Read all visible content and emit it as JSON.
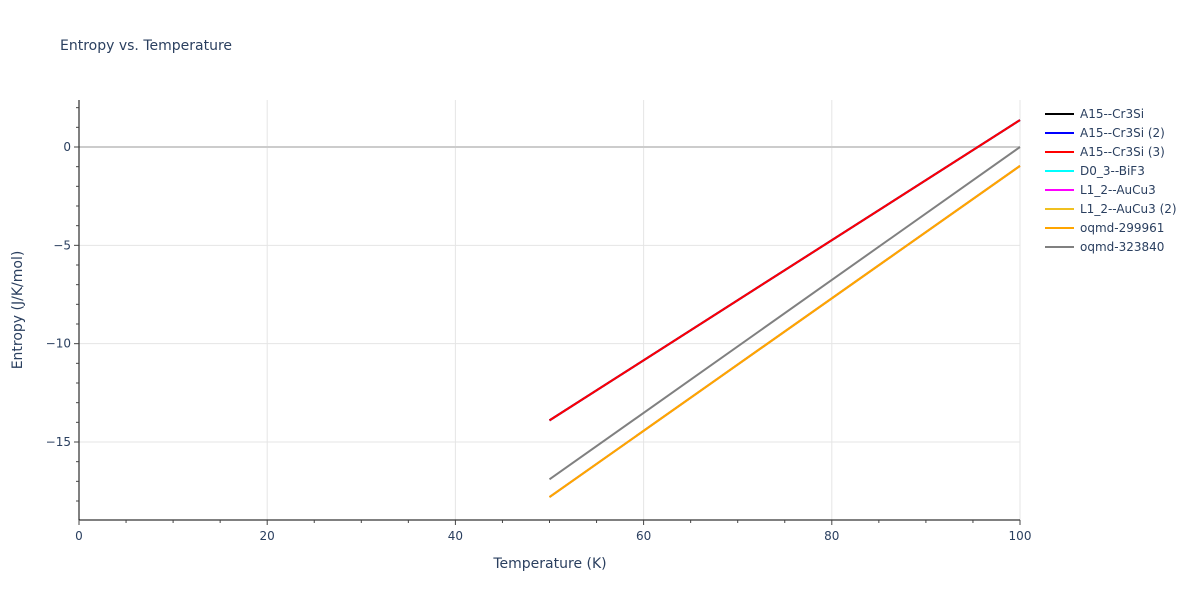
{
  "chart_data": {
    "type": "line",
    "title": "Entropy vs. Temperature",
    "xlabel": "Temperature (K)",
    "ylabel": "Entropy (J/K/mol)",
    "xlim": [
      0,
      100
    ],
    "ylim": [
      -18.9,
      2.4
    ],
    "xticks": [
      0,
      20,
      40,
      60,
      80,
      100
    ],
    "yticks": [
      0,
      -5,
      -10,
      -15
    ],
    "xtick_labels": [
      "0",
      "20",
      "40",
      "60",
      "80",
      "100"
    ],
    "ytick_labels": [
      "0",
      "−5",
      "−10",
      "−15"
    ],
    "grid": true,
    "legend_position": "right",
    "series": [
      {
        "name": "A15--Cr3Si",
        "color": "#000000",
        "x": [
          50,
          100
        ],
        "y": [
          -13.9,
          1.37
        ],
        "visible_in_plot": false
      },
      {
        "name": "A15--Cr3Si (2)",
        "color": "#0000ff",
        "x": [
          50,
          100
        ],
        "y": [
          -13.9,
          1.37
        ],
        "visible_in_plot": false
      },
      {
        "name": "A15--Cr3Si (3)",
        "color": "#ff0000",
        "x": [
          50,
          100
        ],
        "y": [
          -13.9,
          1.37
        ]
      },
      {
        "name": "D0_3--BiF3",
        "color": "#00ffff",
        "x": [
          50,
          100
        ],
        "y": [
          -17.8,
          -0.96
        ],
        "visible_in_plot": false
      },
      {
        "name": "L1_2--AuCu3",
        "color": "#ff00ff",
        "x": [
          50,
          100
        ],
        "y": [
          -17.8,
          -0.96
        ],
        "visible_in_plot": false
      },
      {
        "name": "L1_2--AuCu3 (2)",
        "color": "#f0c020",
        "x": [
          50,
          100
        ],
        "y": [
          -17.8,
          -0.96
        ],
        "visible_in_plot": false
      },
      {
        "name": "oqmd-299961",
        "color": "#ffa500",
        "x": [
          50,
          100
        ],
        "y": [
          -17.8,
          -0.96
        ]
      },
      {
        "name": "oqmd-323840",
        "color": "#808080",
        "x": [
          50,
          100
        ],
        "y": [
          -16.9,
          0.0
        ]
      }
    ]
  }
}
